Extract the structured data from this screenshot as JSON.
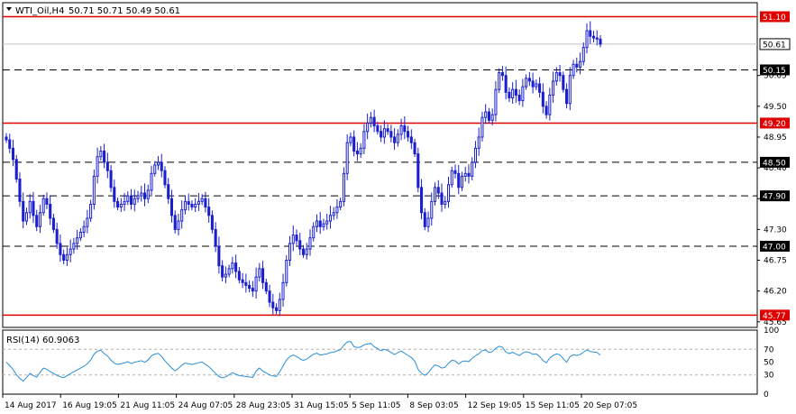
{
  "header": {
    "title": "WTI_Oil,H4",
    "ohlc": "50.71 50.71 50.49 50.61"
  },
  "rsi_header": {
    "label": "RSI(14) 60.9063"
  },
  "colors": {
    "candle_up": "#1a1fd0",
    "candle_down": "#1a1fd0",
    "level_solid": "#e00000",
    "level_dashed": "#000000",
    "rsi_line": "#2a8fd8",
    "price_tag_bg": "#000000",
    "price_tag_red": "#e00000"
  },
  "chart_data": {
    "type": "candlestick",
    "symbol": "WTI_Oil",
    "timeframe": "H4",
    "ylim": [
      45.55,
      51.35
    ],
    "y_ticks": [
      "50.05",
      "49.50",
      "48.95",
      "48.40",
      "47.85",
      "47.30",
      "46.75",
      "46.20",
      "45.65"
    ],
    "x_ticks": [
      "14 Aug 2017",
      "16 Aug 19:05",
      "21 Aug 11:05",
      "24 Aug 07:05",
      "28 Aug 23:05",
      "31 Aug 15:05",
      "5 Sep 11:05",
      "8 Sep 03:05",
      "12 Sep 19:05",
      "15 Sep 11:05",
      "20 Sep 07:05"
    ],
    "levels": [
      {
        "label": "51.10",
        "value": 51.1,
        "style": "solid"
      },
      {
        "label": "50.15",
        "value": 50.15,
        "style": "dashed"
      },
      {
        "label": "49.20",
        "value": 49.2,
        "style": "solid"
      },
      {
        "label": "48.50",
        "value": 48.5,
        "style": "dashed"
      },
      {
        "label": "47.90",
        "value": 47.9,
        "style": "dashed"
      },
      {
        "label": "47.00",
        "value": 47.0,
        "style": "dashed"
      },
      {
        "label": "45.77",
        "value": 45.77,
        "style": "solid"
      }
    ],
    "current_price": {
      "label": "50.61",
      "value": 50.61
    },
    "close": [
      48.9,
      48.75,
      48.55,
      48.2,
      47.8,
      47.45,
      47.6,
      47.8,
      47.55,
      47.35,
      47.6,
      47.85,
      47.75,
      47.5,
      47.3,
      47.05,
      46.85,
      46.75,
      46.85,
      46.95,
      47.05,
      47.15,
      47.25,
      47.35,
      47.5,
      47.75,
      48.25,
      48.6,
      48.7,
      48.5,
      48.35,
      48.05,
      47.8,
      47.7,
      47.75,
      47.8,
      47.9,
      47.75,
      47.85,
      47.9,
      47.95,
      47.85,
      48.0,
      48.3,
      48.45,
      48.5,
      48.35,
      48.1,
      47.85,
      47.55,
      47.3,
      47.45,
      47.65,
      47.8,
      47.75,
      47.7,
      47.75,
      47.8,
      47.85,
      47.7,
      47.55,
      47.3,
      47.0,
      46.65,
      46.45,
      46.5,
      46.6,
      46.7,
      46.55,
      46.4,
      46.35,
      46.3,
      46.25,
      46.2,
      46.45,
      46.6,
      46.35,
      46.2,
      46.0,
      45.9,
      45.85,
      46.05,
      46.35,
      46.75,
      47.05,
      47.2,
      47.1,
      46.95,
      46.85,
      46.95,
      47.15,
      47.35,
      47.45,
      47.35,
      47.4,
      47.45,
      47.55,
      47.6,
      47.7,
      47.8,
      48.3,
      48.85,
      48.95,
      48.7,
      48.65,
      48.75,
      49.05,
      49.2,
      49.3,
      49.15,
      49.05,
      48.95,
      49.1,
      49.05,
      48.95,
      48.85,
      49.0,
      49.15,
      49.05,
      48.95,
      48.85,
      48.65,
      48.05,
      47.6,
      47.35,
      47.5,
      47.8,
      48.05,
      47.95,
      47.75,
      47.8,
      48.1,
      48.35,
      48.3,
      48.05,
      48.25,
      48.3,
      48.25,
      48.5,
      48.75,
      48.95,
      49.3,
      49.4,
      49.25,
      49.35,
      49.8,
      50.1,
      50.05,
      49.75,
      49.65,
      49.8,
      49.7,
      49.6,
      49.85,
      50.0,
      49.95,
      49.85,
      49.9,
      49.75,
      49.5,
      49.35,
      49.7,
      49.95,
      50.1,
      50.05,
      49.8,
      49.55,
      50.05,
      50.25,
      50.2,
      50.3,
      50.55,
      50.85,
      50.75,
      50.72,
      50.7,
      50.61
    ],
    "rsi": {
      "period": 14,
      "value": 60.9063,
      "ylim": [
        0,
        100
      ],
      "ticks": [
        "100",
        "70",
        "50",
        "30",
        "0"
      ],
      "levels": [
        70,
        30
      ]
    }
  }
}
